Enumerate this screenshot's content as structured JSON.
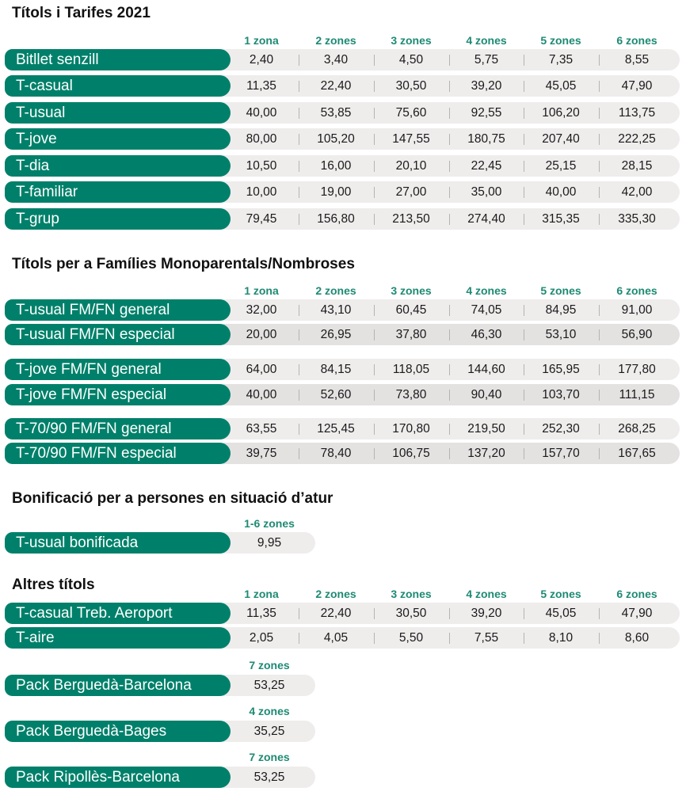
{
  "sections": [
    {
      "title": "Títols i Tarifes 2021",
      "zones": [
        "1 zona",
        "2 zones",
        "3 zones",
        "4 zones",
        "5 zones",
        "6 zones"
      ],
      "rows": [
        {
          "label": "Bitllet senzill",
          "values": [
            "2,40",
            "3,40",
            "4,50",
            "5,75",
            "7,35",
            "8,55"
          ]
        },
        {
          "label": "T-casual",
          "values": [
            "11,35",
            "22,40",
            "30,50",
            "39,20",
            "45,05",
            "47,90"
          ]
        },
        {
          "label": "T-usual",
          "values": [
            "40,00",
            "53,85",
            "75,60",
            "92,55",
            "106,20",
            "113,75"
          ]
        },
        {
          "label": "T-jove",
          "values": [
            "80,00",
            "105,20",
            "147,55",
            "180,75",
            "207,40",
            "222,25"
          ]
        },
        {
          "label": "T-dia",
          "values": [
            "10,50",
            "16,00",
            "20,10",
            "22,45",
            "25,15",
            "28,15"
          ]
        },
        {
          "label": "T-familiar",
          "values": [
            "10,00",
            "19,00",
            "27,00",
            "35,00",
            "40,00",
            "42,00"
          ]
        },
        {
          "label": "T-grup",
          "values": [
            "79,45",
            "156,80",
            "213,50",
            "274,40",
            "315,35",
            "335,30"
          ]
        }
      ]
    },
    {
      "title": "Títols per a Famílies Monoparentals/Nombroses",
      "zones": [
        "1 zona",
        "2 zones",
        "3 zones",
        "4 zones",
        "5 zones",
        "6 zones"
      ],
      "rows": [
        {
          "label": "T-usual FM/FN general",
          "values": [
            "32,00",
            "43,10",
            "60,45",
            "74,05",
            "84,95",
            "91,00"
          ]
        },
        {
          "label": "T-usual FM/FN especial",
          "values": [
            "20,00",
            "26,95",
            "37,80",
            "46,30",
            "53,10",
            "56,90"
          ]
        },
        {
          "label": "T-jove FM/FN general",
          "values": [
            "64,00",
            "84,15",
            "118,05",
            "144,60",
            "165,95",
            "177,80"
          ]
        },
        {
          "label": "T-jove FM/FN especial",
          "values": [
            "40,00",
            "52,60",
            "73,80",
            "90,40",
            "103,70",
            "111,15"
          ]
        },
        {
          "label": "T-70/90 FM/FN general",
          "values": [
            "63,55",
            "125,45",
            "170,80",
            "219,50",
            "252,30",
            "268,25"
          ]
        },
        {
          "label": "T-70/90 FM/FN especial",
          "values": [
            "39,75",
            "78,40",
            "106,75",
            "137,20",
            "157,70",
            "167,65"
          ]
        }
      ]
    },
    {
      "title": "Bonificació per a persones en situació d’atur",
      "zones": [
        "1-6 zones"
      ],
      "rows": [
        {
          "label": "T-usual bonificada",
          "values": [
            "9,95"
          ]
        }
      ]
    },
    {
      "title": "Altres títols",
      "zones": [
        "1 zona",
        "2 zones",
        "3 zones",
        "4 zones",
        "5 zones",
        "6 zones"
      ],
      "rows": [
        {
          "label": "T-casual Treb. Aeroport",
          "values": [
            "11,35",
            "22,40",
            "30,50",
            "39,20",
            "45,05",
            "47,90"
          ]
        },
        {
          "label": "T-aire",
          "values": [
            "2,05",
            "4,05",
            "5,50",
            "7,55",
            "8,10",
            "8,60"
          ]
        }
      ]
    }
  ],
  "packs": [
    {
      "zones": "7 zones",
      "label": "Pack Berguedà-Barcelona",
      "value": "53,25"
    },
    {
      "zones": "4 zones",
      "label": "Pack Berguedà-Bages",
      "value": "35,25"
    },
    {
      "zones": "7 zones",
      "label": "Pack Ripollès-Barcelona",
      "value": "53,25"
    }
  ],
  "colors": {
    "accent": "#00806a",
    "zone_text": "#1e8a74",
    "value_bg": "#efecec"
  }
}
